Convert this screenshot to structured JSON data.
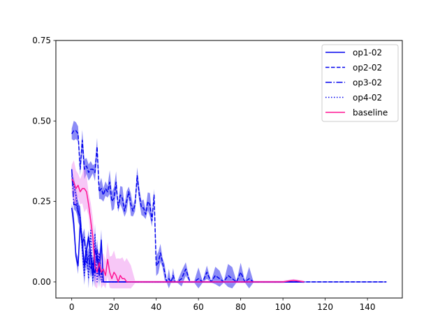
{
  "chart_data": {
    "type": "line",
    "title": "",
    "xlabel": "",
    "ylabel": "",
    "xlim": [
      -7.5,
      156.5
    ],
    "ylim": [
      -0.05,
      0.75
    ],
    "xticks": [
      0,
      20,
      40,
      60,
      80,
      100,
      120,
      140
    ],
    "yticks": [
      0.0,
      0.25,
      0.5,
      0.75
    ],
    "ytick_labels": [
      "0.00",
      "0.25",
      "0.50",
      "0.75"
    ],
    "grid": false,
    "legend_position": "top-right",
    "colors": {
      "op": "#0000ee",
      "baseline": "#ff1493",
      "baseline_band": "#ee82ee",
      "op_band": "#1a1aee"
    },
    "series": [
      {
        "name": "op1-02",
        "style": "solid",
        "color": "#0000ee",
        "x": [
          0,
          1,
          2,
          3,
          4,
          5,
          6,
          7,
          8,
          9,
          10,
          11,
          12,
          13,
          14,
          15,
          16,
          17,
          18,
          19,
          20,
          25,
          30,
          40,
          60,
          80,
          100,
          110
        ],
        "y": [
          0.23,
          0.18,
          0.08,
          0.05,
          0.18,
          0.12,
          0.05,
          0.1,
          0.14,
          0.08,
          0.02,
          0.1,
          0.08,
          0.02,
          0.13,
          0.0,
          0.0,
          0.0,
          0.0,
          0.0,
          0.0,
          0.0,
          0.0,
          0.0,
          0.0,
          0.0,
          0.0,
          0.0
        ]
      },
      {
        "name": "op2-02",
        "style": "dashed",
        "color": "#0000ee",
        "x": [
          0,
          1,
          2,
          3,
          4,
          5,
          6,
          7,
          8,
          9,
          10,
          11,
          12,
          13,
          14,
          15,
          16,
          17,
          18,
          19,
          20,
          21,
          22,
          23,
          24,
          25,
          26,
          27,
          28,
          29,
          30,
          31,
          32,
          33,
          34,
          35,
          36,
          37,
          38,
          39,
          40,
          41,
          42,
          43,
          44,
          45,
          46,
          47,
          48,
          49,
          50,
          52,
          54,
          56,
          58,
          60,
          62,
          64,
          66,
          68,
          70,
          72,
          74,
          76,
          78,
          80,
          82,
          84,
          86,
          90,
          100,
          110,
          120,
          130,
          140,
          149
        ],
        "y": [
          0.46,
          0.47,
          0.47,
          0.46,
          0.35,
          0.44,
          0.35,
          0.36,
          0.34,
          0.35,
          0.35,
          0.34,
          0.42,
          0.28,
          0.29,
          0.27,
          0.29,
          0.28,
          0.31,
          0.25,
          0.26,
          0.31,
          0.23,
          0.27,
          0.26,
          0.22,
          0.25,
          0.28,
          0.24,
          0.22,
          0.24,
          0.33,
          0.27,
          0.23,
          0.23,
          0.21,
          0.25,
          0.24,
          0.19,
          0.27,
          0.05,
          0.06,
          0.09,
          0.06,
          0.03,
          0.0,
          0.01,
          0.0,
          0.02,
          0.0,
          0.0,
          0.01,
          0.04,
          0.0,
          0.0,
          0.01,
          0.0,
          0.03,
          0.0,
          0.02,
          0.01,
          0.0,
          0.02,
          0.01,
          0.0,
          0.03,
          0.0,
          0.01,
          0.0,
          0.0,
          0.0,
          0.0,
          0.0,
          0.0,
          0.0,
          0.0
        ]
      },
      {
        "name": "op3-02",
        "style": "dashdot",
        "color": "#0000ee",
        "x": [
          0,
          1,
          2,
          3,
          4,
          5,
          6,
          7,
          8,
          9,
          10,
          11,
          12,
          13,
          14,
          15,
          16,
          17,
          18,
          20,
          25,
          30,
          40,
          60,
          80,
          100,
          110
        ],
        "y": [
          0.35,
          0.24,
          0.24,
          0.22,
          0.2,
          0.12,
          0.14,
          0.06,
          0.08,
          0.04,
          0.06,
          0.02,
          0.1,
          0.04,
          0.03,
          0.0,
          0.0,
          0.0,
          0.0,
          0.0,
          0.0,
          0.0,
          0.0,
          0.0,
          0.0,
          0.0,
          0.0
        ]
      },
      {
        "name": "op4-02",
        "style": "dotted",
        "color": "#0000ee",
        "x": [
          0,
          1,
          2,
          3,
          4,
          5,
          6,
          7,
          8,
          9,
          10,
          11,
          12,
          13,
          14,
          15,
          16,
          17,
          18,
          20,
          25,
          30,
          40,
          60,
          80,
          100,
          110
        ],
        "y": [
          0.33,
          0.3,
          0.27,
          0.22,
          0.2,
          0.1,
          0.02,
          0.1,
          0.01,
          0.16,
          0.0,
          0.15,
          0.0,
          0.09,
          0.0,
          0.0,
          0.0,
          0.0,
          0.0,
          0.0,
          0.0,
          0.0,
          0.0,
          0.0,
          0.0,
          0.0,
          0.0
        ]
      },
      {
        "name": "baseline",
        "style": "solid",
        "color": "#ff1493",
        "x": [
          0,
          1,
          2,
          3,
          4,
          5,
          6,
          7,
          8,
          9,
          10,
          11,
          12,
          13,
          14,
          15,
          16,
          17,
          18,
          19,
          20,
          21,
          22,
          23,
          24,
          25,
          26,
          28,
          30,
          32,
          34,
          40,
          50,
          60,
          70,
          80,
          90,
          100,
          105,
          110
        ],
        "y": [
          0.32,
          0.31,
          0.29,
          0.3,
          0.28,
          0.29,
          0.29,
          0.28,
          0.24,
          0.19,
          0.14,
          0.05,
          0.03,
          0.06,
          0.03,
          0.04,
          0.02,
          0.07,
          0.03,
          0.01,
          0.03,
          0.02,
          0.0,
          0.02,
          0.01,
          0.01,
          0.0,
          0.0,
          0.0,
          0.0,
          0.0,
          0.0,
          0.0,
          0.0,
          0.0,
          0.0,
          0.0,
          0.0,
          0.005,
          0.0
        ]
      }
    ]
  }
}
